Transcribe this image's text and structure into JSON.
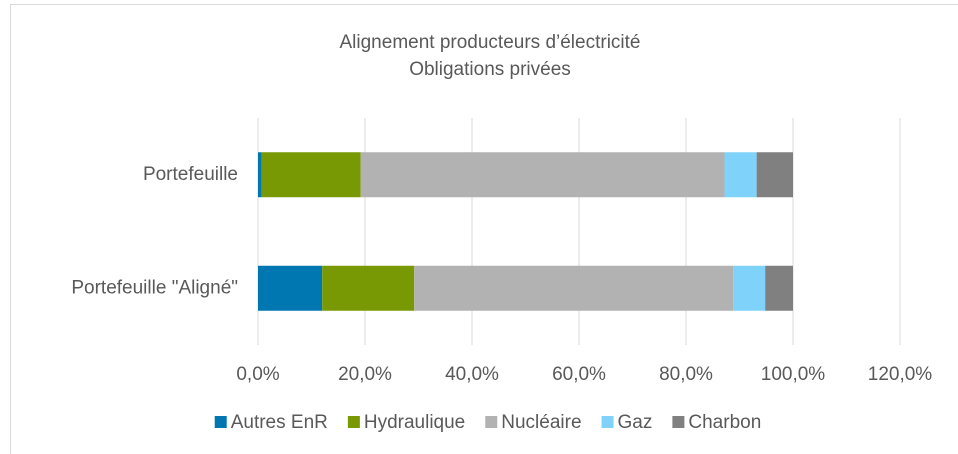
{
  "chart_data": {
    "type": "stacked-bar-horizontal",
    "title": "Alignement producteurs d’électricité",
    "subtitle": "Obligations privées",
    "categories": [
      "Portefeuille",
      "Portefeuille \"Aligné\""
    ],
    "series": [
      {
        "name": "Autres EnR",
        "color": "#0077b0",
        "values": [
          0.7,
          12.0
        ]
      },
      {
        "name": "Hydraulique",
        "color": "#789904",
        "values": [
          18.5,
          17.2
        ]
      },
      {
        "name": "Nucléaire",
        "color": "#b2b2b2",
        "values": [
          68.0,
          59.6
        ]
      },
      {
        "name": "Gaz",
        "color": "#7fd3fb",
        "values": [
          6.0,
          6.0
        ]
      },
      {
        "name": "Charbon",
        "color": "#808080",
        "values": [
          6.8,
          5.2
        ]
      }
    ],
    "xlim": [
      0,
      120
    ],
    "xticks": [
      {
        "value": 0,
        "label": "0,0%"
      },
      {
        "value": 20,
        "label": "20,0%"
      },
      {
        "value": 40,
        "label": "40,0%"
      },
      {
        "value": 60,
        "label": "60,0%"
      },
      {
        "value": 80,
        "label": "80,0%"
      },
      {
        "value": 100,
        "label": "100,0%"
      },
      {
        "value": 120,
        "label": "120,0%"
      }
    ],
    "grid": true,
    "legend": "bottom"
  }
}
